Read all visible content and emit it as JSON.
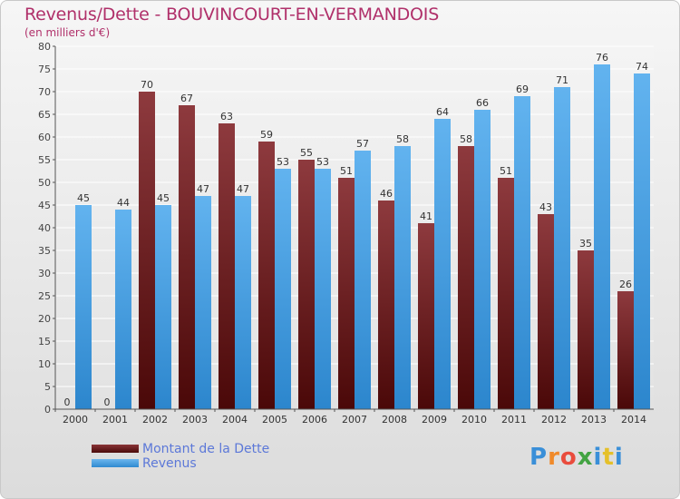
{
  "chart_data": {
    "type": "bar",
    "title": "Revenus/Dette - BOUVINCOURT-EN-VERMANDOIS",
    "subtitle": "(en milliers d'€)",
    "categories": [
      "2000",
      "2001",
      "2002",
      "2003",
      "2004",
      "2005",
      "2006",
      "2007",
      "2008",
      "2009",
      "2010",
      "2011",
      "2012",
      "2013",
      "2014"
    ],
    "series": [
      {
        "name": "Montant de la Dette",
        "values": [
          0,
          0,
          70,
          67,
          63,
          59,
          55,
          51,
          46,
          41,
          58,
          51,
          43,
          35,
          26
        ],
        "color": "#6e1a1e"
      },
      {
        "name": "Revenus",
        "values": [
          45,
          44,
          45,
          47,
          47,
          53,
          53,
          57,
          58,
          64,
          66,
          69,
          71,
          76,
          74
        ],
        "color": "#4aa3e6"
      }
    ],
    "ylim": [
      0,
      80
    ],
    "yticks": [
      0,
      5,
      10,
      15,
      20,
      25,
      30,
      35,
      40,
      45,
      50,
      55,
      60,
      65,
      70,
      75,
      80
    ],
    "grid": "horizontal",
    "legend_position": "bottom-left"
  },
  "logo": {
    "text": "Proxiti",
    "colors": [
      "#3a8fd8",
      "#f08a2a",
      "#e94c3d",
      "#43a343",
      "#3a8fd8",
      "#e5c02a",
      "#3a8fd8"
    ]
  }
}
